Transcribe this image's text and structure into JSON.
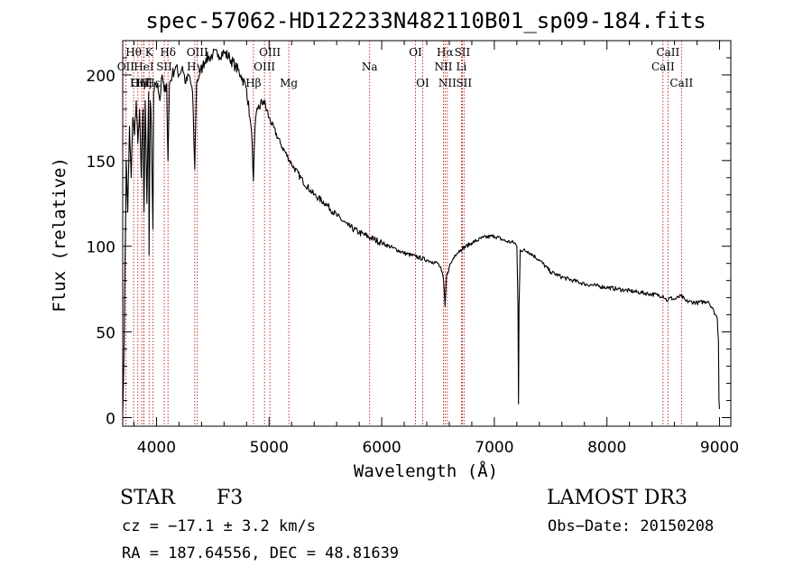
{
  "chart_data": {
    "type": "line",
    "title": "spec-57062-HD122233N482110B01_sp09-184.fits",
    "xlabel": "Wavelength (Å)",
    "ylabel": "Flux (relative)",
    "xlim": [
      3700,
      9100
    ],
    "ylim": [
      -5,
      220
    ],
    "xticks": [
      4000,
      5000,
      6000,
      7000,
      8000,
      9000
    ],
    "yticks": [
      0,
      50,
      100,
      150,
      200
    ],
    "grid": false,
    "series": [
      {
        "name": "spectrum",
        "x": [
          3700,
          3712,
          3722,
          3732,
          3745,
          3760,
          3775,
          3790,
          3805,
          3820,
          3835,
          3850,
          3865,
          3880,
          3889,
          3900,
          3915,
          3930,
          3934,
          3945,
          3955,
          3968,
          3975,
          3990,
          4010,
          4030,
          4050,
          4070,
          4090,
          4102,
          4115,
          4140,
          4170,
          4200,
          4230,
          4260,
          4290,
          4320,
          4340,
          4355,
          4380,
          4410,
          4440,
          4470,
          4500,
          4550,
          4600,
          4650,
          4700,
          4750,
          4800,
          4830,
          4850,
          4861,
          4875,
          4900,
          4950,
          5000,
          5100,
          5200,
          5300,
          5400,
          5500,
          5600,
          5700,
          5800,
          5900,
          6000,
          6100,
          6200,
          6300,
          6400,
          6450,
          6500,
          6530,
          6550,
          6563,
          6575,
          6600,
          6650,
          6700,
          6800,
          6900,
          7000,
          7100,
          7180,
          7200,
          7210,
          7215,
          7220,
          7230,
          7300,
          7400,
          7500,
          7600,
          7700,
          7800,
          7900,
          8000,
          8100,
          8200,
          8300,
          8400,
          8500,
          8540,
          8560,
          8600,
          8660,
          8700,
          8800,
          8900,
          8950,
          8980,
          8990,
          8995,
          9000
        ],
        "values": [
          2,
          40,
          95,
          150,
          120,
          170,
          140,
          175,
          165,
          185,
          160,
          180,
          140,
          180,
          120,
          185,
          125,
          190,
          95,
          185,
          170,
          110,
          190,
          195,
          195,
          185,
          200,
          190,
          195,
          150,
          195,
          200,
          205,
          200,
          205,
          195,
          200,
          190,
          145,
          195,
          200,
          205,
          210,
          210,
          212,
          212,
          213,
          210,
          205,
          200,
          192,
          175,
          160,
          138,
          170,
          180,
          185,
          175,
          160,
          148,
          138,
          130,
          125,
          118,
          112,
          108,
          105,
          102,
          99,
          96,
          94,
          92,
          91,
          90,
          86,
          80,
          65,
          82,
          88,
          95,
          98,
          102,
          105,
          106,
          103,
          102,
          100,
          65,
          8,
          65,
          98,
          97,
          92,
          85,
          82,
          80,
          78,
          77,
          76,
          75,
          74,
          73,
          72,
          71,
          68,
          70,
          69,
          71,
          68,
          67,
          68,
          62,
          58,
          45,
          10,
          5
        ]
      }
    ],
    "lines": [
      {
        "name": "Hθ",
        "wave": 3797,
        "row": 0
      },
      {
        "name": "OII",
        "wave": 3727,
        "row": 1
      },
      {
        "name": "OIII",
        "wave": 3869,
        "row": 2
      },
      {
        "name": "Hη",
        "wave": 3835,
        "row": 2
      },
      {
        "name": "Hζ",
        "wave": 3889,
        "row": 2
      },
      {
        "name": "HeI",
        "wave": 3888,
        "row": 1
      },
      {
        "name": "K",
        "wave": 3934,
        "row": 0
      },
      {
        "name": "SII",
        "wave": 4069,
        "row": 1
      },
      {
        "name": "Hε",
        "wave": 3970,
        "row": 2
      },
      {
        "name": "Hδ",
        "wave": 4102,
        "row": 0
      },
      {
        "name": "OIII",
        "wave": 4363,
        "row": 0
      },
      {
        "name": "Hγ",
        "wave": 4340,
        "row": 1
      },
      {
        "name": "Hβ",
        "wave": 4861,
        "row": 2
      },
      {
        "name": "OIII",
        "wave": 5007,
        "row": 0
      },
      {
        "name": "OIII",
        "wave": 4959,
        "row": 1
      },
      {
        "name": "Mg",
        "wave": 5175,
        "row": 2
      },
      {
        "name": "Na",
        "wave": 5893,
        "row": 1
      },
      {
        "name": "OI",
        "wave": 6300,
        "row": 0
      },
      {
        "name": "OI",
        "wave": 6364,
        "row": 2
      },
      {
        "name": "Hα",
        "wave": 6563,
        "row": 0
      },
      {
        "name": "NII",
        "wave": 6548,
        "row": 1
      },
      {
        "name": "NII",
        "wave": 6583,
        "row": 2
      },
      {
        "name": "SII",
        "wave": 6716,
        "row": 0
      },
      {
        "name": "Li",
        "wave": 6708,
        "row": 1
      },
      {
        "name": "SII",
        "wave": 6731,
        "row": 2
      },
      {
        "name": "CaII",
        "wave": 8542,
        "row": 0
      },
      {
        "name": "CaII",
        "wave": 8498,
        "row": 1
      },
      {
        "name": "CaII",
        "wave": 8662,
        "row": 2
      }
    ],
    "line_color": "#aa0000"
  },
  "info": {
    "object_class": "STAR",
    "subclass": "F3",
    "survey": "LAMOST DR3",
    "cz": "cz = −17.1 ± 3.2 km/s",
    "obs_date": "Obs−Date: 20150208",
    "coords": "RA = 187.64556, DEC =  48.81639"
  }
}
